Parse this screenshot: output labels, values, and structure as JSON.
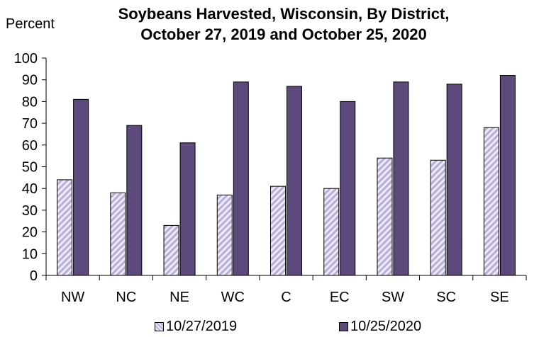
{
  "chart_data": {
    "type": "bar",
    "title": "Soybeans Harvested, Wisconsin, By District, October 27, 2019 and October 25, 2020",
    "ylabel": "Percent",
    "xlabel": "",
    "ylim": [
      0,
      100
    ],
    "yticks": [
      0,
      10,
      20,
      30,
      40,
      50,
      60,
      70,
      80,
      90,
      100
    ],
    "categories": [
      "NW",
      "NC",
      "NE",
      "WC",
      "C",
      "EC",
      "SW",
      "SC",
      "SE"
    ],
    "series": [
      {
        "name": "10/27/2019",
        "values": [
          44,
          38,
          23,
          37,
          41,
          40,
          54,
          53,
          68
        ],
        "color": "#c8bfe0",
        "pattern": "diagonal-hatch"
      },
      {
        "name": "10/25/2020",
        "values": [
          81,
          69,
          61,
          89,
          87,
          80,
          89,
          88,
          92
        ],
        "color": "#5b4a7b"
      }
    ],
    "grid": false,
    "legend": "bottom"
  }
}
